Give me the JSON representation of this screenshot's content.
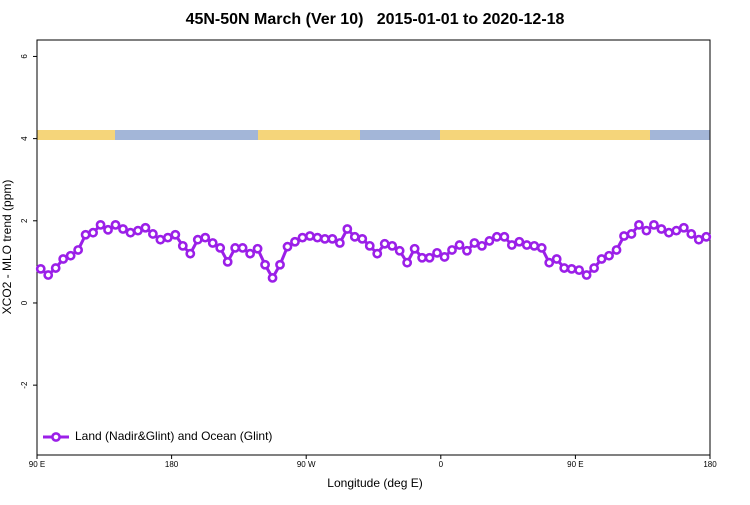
{
  "chart_data": {
    "type": "line",
    "title": "45N-50N March (Ver 10)   2015-01-01 to 2020-12-18",
    "x_label": "Longitude (deg E)",
    "y_label": "XCO2 - MLO trend (ppm)",
    "xlim": [
      90,
      540
    ],
    "ylim": [
      -3.7,
      6.4
    ],
    "xticks": [
      {
        "value": 90,
        "label": "90 E"
      },
      180,
      {
        "value": 270,
        "label": "90 W"
      },
      {
        "value": 360,
        "label": "0"
      },
      {
        "value": 450,
        "label": "90 E"
      },
      {
        "value": 540,
        "label": "180"
      }
    ],
    "yticks": [
      -2,
      0,
      2,
      4,
      6
    ],
    "legend": "bottom-left",
    "x": [
      92.5,
      97.5,
      102.5,
      107.5,
      112.5,
      117.5,
      122.5,
      127.5,
      132.5,
      137.5,
      142.5,
      147.5,
      152.5,
      157.5,
      162.5,
      167.5,
      172.5,
      177.5,
      182.5,
      187.5,
      192.5,
      197.5,
      202.5,
      207.5,
      212.5,
      217.5,
      222.5,
      227.5,
      232.5,
      237.5,
      242.5,
      247.5,
      252.5,
      257.5,
      262.5,
      267.5,
      272.5,
      277.5,
      282.5,
      287.5,
      292.5,
      297.5,
      302.5,
      307.5,
      312.5,
      317.5,
      322.5,
      327.5,
      332.5,
      337.5,
      342.5,
      347.5,
      352.5,
      357.5,
      362.5,
      367.5,
      372.5,
      377.5,
      382.5,
      387.5,
      392.5,
      397.5,
      402.5,
      407.5,
      412.5,
      417.5,
      422.5,
      427.5,
      432.5,
      437.5,
      442.5,
      447.5,
      452.5,
      457.5,
      462.5,
      467.5,
      472.5,
      477.5,
      482.5,
      487.5,
      492.5,
      497.5,
      502.5,
      507.5,
      512.5,
      517.5,
      522.5,
      527.5,
      532.5,
      537.5
    ],
    "series": [
      {
        "name": "Land (Nadir&Glint) and Ocean (Glint)",
        "color": "#9b1fe8",
        "values": [
          0.83,
          0.68,
          0.85,
          1.07,
          1.15,
          1.29,
          1.66,
          1.71,
          1.9,
          1.78,
          1.9,
          1.8,
          1.71,
          1.76,
          1.83,
          1.68,
          1.54,
          1.59,
          1.66,
          1.39,
          1.2,
          1.54,
          1.59,
          1.46,
          1.34,
          1.0,
          1.34,
          1.34,
          1.2,
          1.32,
          0.93,
          0.61,
          0.93,
          1.37,
          1.49,
          1.59,
          1.63,
          1.59,
          1.56,
          1.56,
          1.46,
          1.8,
          1.61,
          1.56,
          1.39,
          1.2,
          1.44,
          1.39,
          1.27,
          0.98,
          1.32,
          1.1,
          1.1,
          1.22,
          1.12,
          1.29,
          1.41,
          1.27,
          1.46,
          1.39,
          1.51,
          1.61,
          1.61,
          1.41,
          1.49,
          1.41,
          1.39,
          1.34,
          0.98,
          1.07,
          0.85,
          0.83,
          0.8,
          0.68,
          0.85,
          1.07,
          1.15,
          1.29,
          1.63,
          1.68,
          1.9,
          1.76,
          1.9,
          1.8,
          1.71,
          1.76,
          1.83,
          1.68,
          1.54,
          1.61
        ]
      }
    ]
  }
}
